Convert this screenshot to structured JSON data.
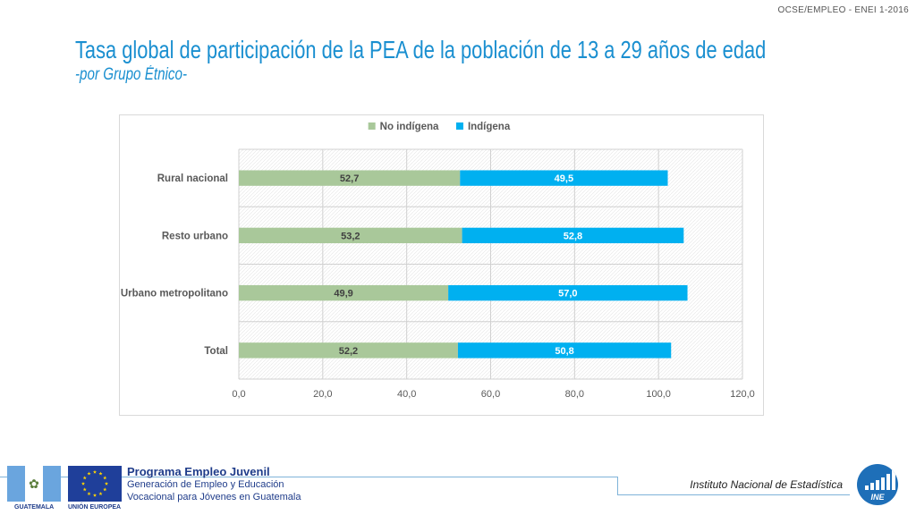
{
  "header": {
    "code": "OCSE/EMPLEO -  ENEI 1-2016",
    "title": "Tasa global de participación de la PEA de la población de 13 a 29 años de edad",
    "subtitle": "-por Grupo Étnico-"
  },
  "chart_data": {
    "type": "bar",
    "orientation": "horizontal",
    "stacked": true,
    "title": "",
    "xlabel": "",
    "ylabel": "",
    "categories": [
      "Rural nacional",
      "Resto urbano",
      "Urbano metropolitano",
      "Total"
    ],
    "series": [
      {
        "name": "No indígena",
        "color": "#a9c89a",
        "values": [
          52.7,
          53.2,
          49.9,
          52.2
        ],
        "labels": [
          "52,7",
          "53,2",
          "49,9",
          "52,2"
        ]
      },
      {
        "name": "Indígena",
        "color": "#00b0f0",
        "values": [
          49.5,
          52.8,
          57.0,
          50.8
        ],
        "labels": [
          "49,5",
          "52,8",
          "57,0",
          "50,8"
        ]
      }
    ],
    "xlim": [
      0,
      120
    ],
    "xticks": [
      0,
      20,
      40,
      60,
      80,
      100,
      120
    ],
    "xtick_labels": [
      "0,0",
      "20,0",
      "40,0",
      "60,0",
      "80,0",
      "100,0",
      "120,0"
    ],
    "grid": true,
    "legend": "top-center"
  },
  "footer": {
    "flag_gt_label": "GUATEMALA",
    "flag_eu_label": "UNIÓN EUROPEA",
    "program_title": "Programa Empleo Juvenil",
    "program_line1": "Generación de Empleo y Educación",
    "program_line2": "Vocacional para Jóvenes en Guatemala",
    "institute": "Instituto Nacional de Estadística",
    "logo_text": "INE"
  }
}
